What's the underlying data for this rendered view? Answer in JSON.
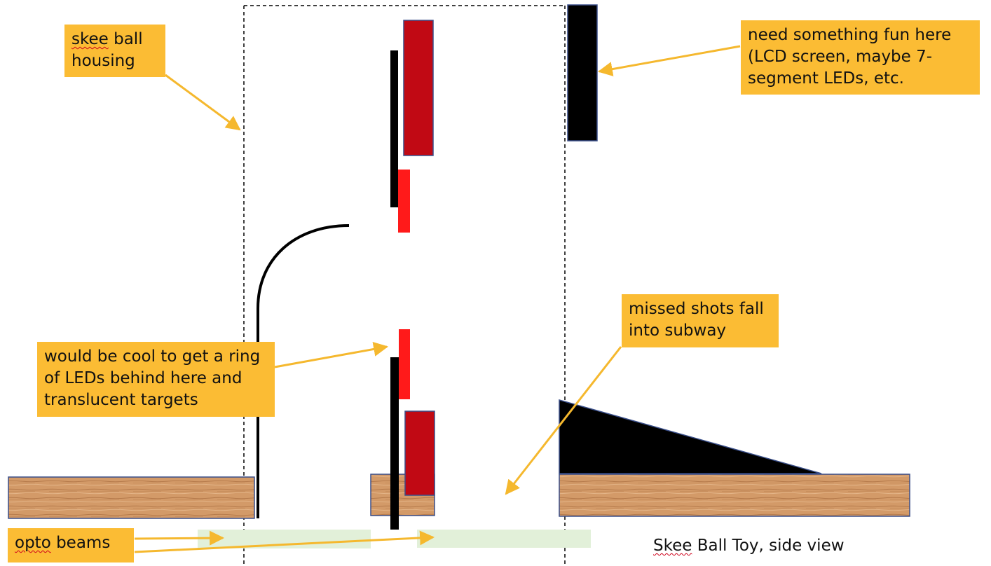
{
  "diagram": {
    "colors": {
      "callout": "#fbbc34",
      "arrow": "#f5b82e",
      "red_led": "#ff1a1a",
      "dark_red_target": "#c10914",
      "target_border": "#3a4f8a",
      "wood": "#d39a68",
      "opto_beam": "#e2f0d9",
      "black": "#000000"
    },
    "icons": [
      "wood-texture",
      "dashed-outline",
      "curved-ramp"
    ],
    "notes": {
      "housing": {
        "word": "skee",
        "rest": " ball\nhousing"
      },
      "display": "need something fun here\n(LCD screen, maybe 7-\nsegment LEDs, etc.",
      "leds": "would be cool to get a ring\nof LEDs behind here and\ntranslucent targets",
      "subway": "missed shots fall\ninto subway",
      "opto": {
        "word": "opto",
        "rest": " beams"
      }
    },
    "caption": {
      "word": "Skee",
      "rest": " Ball Toy, side view"
    }
  }
}
